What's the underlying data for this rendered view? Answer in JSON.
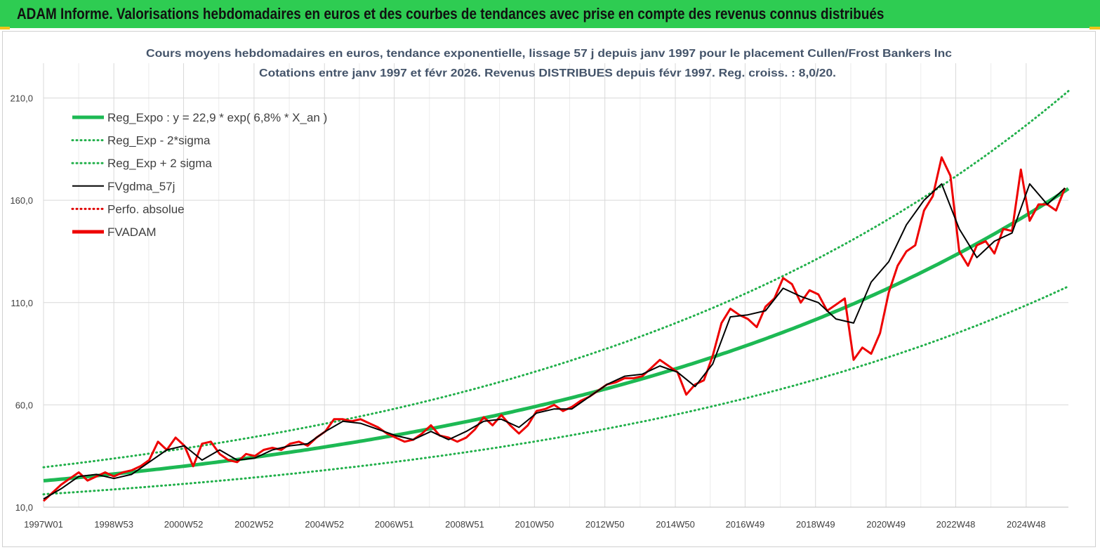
{
  "banner": {
    "title": "ADAM Informe. Valorisations hebdomadaires en euros et des courbes de tendances avec prise en compte des revenus connus distribués"
  },
  "colors": {
    "banner_bg": "#2ecc52",
    "reg_expo": "#1db954",
    "sigma_lines": "#22b04b",
    "fvgdma": "#000000",
    "perfo": "#e00000",
    "fvadam": "#ee0000",
    "title": "#44546a"
  },
  "chart_data": {
    "type": "line",
    "title": "Cours moyens hebdomadaires en euros, tendance exponentielle, lissage 57 j depuis janv 1997 pour le placement Cullen/Frost Bankers Inc",
    "subtitle": "Cotations entre janv 1997 et févr 2026. Revenus DISTRIBUES depuis févr 1997. Reg. croiss. : 8,0/20.",
    "xlabel": "",
    "ylabel": "",
    "xlim": [
      1997.0,
      2026.1
    ],
    "ylim": [
      10,
      227
    ],
    "y_ticks": [
      "10,0",
      "60,0",
      "110,0",
      "160,0",
      "210,0"
    ],
    "x_ticks": [
      "1997W01",
      "1998W53",
      "2000W52",
      "2002W52",
      "2004W52",
      "2006W51",
      "2008W51",
      "2010W50",
      "2012W50",
      "2014W50",
      "2016W49",
      "2018W49",
      "2020W49",
      "2022W48",
      "2024W48"
    ],
    "grid": "vertical and horizontal",
    "legend_position": "top-left",
    "series": [
      {
        "name": "Reg_Expo : y = 22,9 * exp( 6,8% *  X_an )",
        "style": "solid-thick",
        "color": "#1db954",
        "formula": {
          "a": 22.9,
          "k": 0.068
        }
      },
      {
        "name": "Reg_Exp - 2*sigma",
        "style": "dotted",
        "color": "#22b04b",
        "formula": {
          "a": 16.3,
          "k": 0.068
        }
      },
      {
        "name": "Reg_Exp + 2 sigma",
        "style": "dotted",
        "color": "#22b04b",
        "formula": {
          "a": 29.5,
          "k": 0.068
        }
      },
      {
        "name": "FVgdma_57j",
        "style": "solid",
        "color": "#000000",
        "x": [
          1997.0,
          1997.5,
          1998.0,
          1998.5,
          1999.0,
          1999.5,
          2000.0,
          2000.5,
          2001.0,
          2001.5,
          2002.0,
          2002.5,
          2003.0,
          2003.5,
          2004.0,
          2004.5,
          2005.0,
          2005.5,
          2006.0,
          2006.5,
          2007.0,
          2007.5,
          2008.0,
          2008.5,
          2009.0,
          2009.5,
          2010.0,
          2010.5,
          2011.0,
          2011.5,
          2012.0,
          2012.5,
          2013.0,
          2013.5,
          2014.0,
          2014.5,
          2015.0,
          2015.5,
          2016.0,
          2016.5,
          2017.0,
          2017.5,
          2018.0,
          2018.5,
          2019.0,
          2019.5,
          2020.0,
          2020.5,
          2021.0,
          2021.5,
          2022.0,
          2022.5,
          2023.0,
          2023.5,
          2024.0,
          2024.5,
          2025.0,
          2025.5,
          2026.0
        ],
        "y": [
          14,
          19,
          25,
          26,
          24,
          26,
          32,
          38,
          40,
          33,
          38,
          33,
          34,
          38,
          40,
          41,
          47,
          52,
          51,
          48,
          45,
          43,
          47,
          43,
          47,
          52,
          53,
          49,
          56,
          58,
          58,
          64,
          70,
          74,
          75,
          79,
          76,
          69,
          80,
          103,
          104,
          106,
          117,
          113,
          110,
          102,
          100,
          120,
          130,
          148,
          160,
          168,
          146,
          132,
          140,
          144,
          168,
          158,
          166
        ]
      },
      {
        "name": "Perfo. absolue",
        "style": "dotted",
        "color": "#e00000",
        "legend_only": true
      },
      {
        "name": "FVADAM",
        "style": "solid-thick",
        "color": "#ee0000",
        "x": [
          1997.0,
          1997.25,
          1997.5,
          1997.75,
          1998.0,
          1998.25,
          1998.5,
          1998.75,
          1999.0,
          1999.25,
          1999.5,
          1999.75,
          2000.0,
          2000.25,
          2000.5,
          2000.75,
          2001.0,
          2001.25,
          2001.5,
          2001.75,
          2002.0,
          2002.25,
          2002.5,
          2002.75,
          2003.0,
          2003.25,
          2003.5,
          2003.75,
          2004.0,
          2004.25,
          2004.5,
          2004.75,
          2005.0,
          2005.25,
          2005.5,
          2005.75,
          2006.0,
          2006.25,
          2006.5,
          2006.75,
          2007.0,
          2007.25,
          2007.5,
          2007.75,
          2008.0,
          2008.25,
          2008.5,
          2008.75,
          2009.0,
          2009.25,
          2009.5,
          2009.75,
          2010.0,
          2010.25,
          2010.5,
          2010.75,
          2011.0,
          2011.25,
          2011.5,
          2011.75,
          2012.0,
          2012.25,
          2012.5,
          2012.75,
          2013.0,
          2013.25,
          2013.5,
          2013.75,
          2014.0,
          2014.25,
          2014.5,
          2014.75,
          2015.0,
          2015.25,
          2015.5,
          2015.75,
          2016.0,
          2016.25,
          2016.5,
          2016.75,
          2017.0,
          2017.25,
          2017.5,
          2017.75,
          2018.0,
          2018.25,
          2018.5,
          2018.75,
          2019.0,
          2019.25,
          2019.5,
          2019.75,
          2020.0,
          2020.25,
          2020.5,
          2020.75,
          2021.0,
          2021.25,
          2021.5,
          2021.75,
          2022.0,
          2022.25,
          2022.5,
          2022.75,
          2023.0,
          2023.25,
          2023.5,
          2023.75,
          2024.0,
          2024.25,
          2024.5,
          2024.75,
          2025.0,
          2025.25,
          2025.5,
          2025.75,
          2026.0
        ],
        "y": [
          13,
          17,
          21,
          24,
          27,
          23,
          25,
          27,
          25,
          27,
          28,
          30,
          33,
          42,
          38,
          44,
          40,
          30,
          41,
          42,
          36,
          33,
          32,
          36,
          35,
          38,
          39,
          38,
          41,
          42,
          40,
          44,
          47,
          53,
          53,
          52,
          53,
          51,
          49,
          46,
          44,
          42,
          43,
          46,
          50,
          45,
          44,
          42,
          44,
          48,
          54,
          50,
          55,
          50,
          46,
          50,
          57,
          58,
          60,
          57,
          59,
          62,
          64,
          67,
          70,
          71,
          73,
          73,
          74,
          78,
          82,
          79,
          76,
          65,
          70,
          72,
          84,
          100,
          107,
          104,
          102,
          98,
          108,
          112,
          122,
          119,
          110,
          116,
          114,
          106,
          109,
          112,
          82,
          88,
          85,
          95,
          115,
          128,
          135,
          138,
          155,
          162,
          181,
          172,
          135,
          128,
          138,
          140,
          134,
          146,
          145,
          175,
          150,
          158,
          158,
          155,
          166
        ]
      }
    ]
  }
}
